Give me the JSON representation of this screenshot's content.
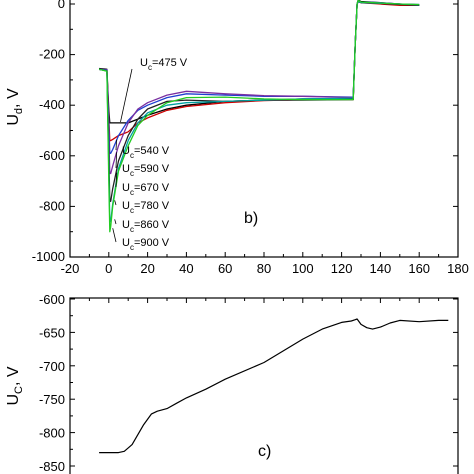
{
  "chart_data": [
    {
      "type": "line",
      "panel_label": "b)",
      "ylabel": "U",
      "ylabel_sub": "d",
      "ylabel_unit": ", V",
      "xlim": [
        -20,
        180
      ],
      "ylim": [
        -1000,
        0
      ],
      "xticks": [
        -20,
        0,
        20,
        40,
        60,
        80,
        100,
        120,
        140,
        160,
        180
      ],
      "yticks": [
        0,
        -200,
        -400,
        -600,
        -800,
        -1000
      ],
      "series": [
        {
          "name": "Uc=475 V",
          "color": "#000000",
          "min": -470,
          "x": [
            -5,
            -1,
            0,
            0.5,
            1,
            2,
            5,
            10,
            15,
            20,
            30,
            40,
            60,
            80,
            100,
            126,
            127,
            128,
            128.5,
            130,
            140,
            150,
            160
          ],
          "y": [
            -255,
            -258,
            -420,
            -470,
            -470,
            -470,
            -470,
            -470,
            -455,
            -440,
            -415,
            -400,
            -385,
            -380,
            -375,
            -375,
            -160,
            0,
            15,
            10,
            5,
            0,
            -5
          ]
        },
        {
          "name": "Uc=540 V",
          "color": "#cc0000",
          "min": -540,
          "x": [
            -5,
            -1,
            0,
            0.5,
            1,
            2,
            5,
            10,
            15,
            20,
            30,
            40,
            60,
            80,
            100,
            126,
            127,
            128,
            128.5,
            130,
            140,
            150,
            160
          ],
          "y": [
            -258,
            -260,
            -450,
            -540,
            -540,
            -535,
            -520,
            -505,
            -470,
            -450,
            -420,
            -405,
            -390,
            -382,
            -378,
            -378,
            -160,
            0,
            10,
            5,
            0,
            -5,
            -5
          ]
        },
        {
          "name": "Uc=590 V",
          "color": "#1f3fd0",
          "min": -590,
          "x": [
            -5,
            -1,
            0,
            0.5,
            1,
            2,
            5,
            10,
            15,
            20,
            30,
            40,
            60,
            80,
            100,
            126,
            127,
            128,
            128.5,
            130,
            140,
            150,
            160
          ],
          "y": [
            -258,
            -260,
            -470,
            -590,
            -590,
            -575,
            -520,
            -460,
            -420,
            -400,
            -370,
            -355,
            -360,
            -365,
            -365,
            -368,
            -160,
            0,
            12,
            8,
            5,
            0,
            -2
          ]
        },
        {
          "name": "Uc=670 V",
          "color": "#7a2fa0",
          "min": -670,
          "x": [
            -5,
            -1,
            0,
            0.5,
            1,
            2,
            5,
            10,
            15,
            20,
            30,
            40,
            60,
            80,
            100,
            126,
            127,
            128,
            128.5,
            130,
            140,
            150,
            160
          ],
          "y": [
            -258,
            -262,
            -520,
            -670,
            -670,
            -640,
            -560,
            -470,
            -415,
            -390,
            -360,
            -345,
            -355,
            -362,
            -365,
            -370,
            -160,
            0,
            8,
            6,
            3,
            0,
            -3
          ]
        },
        {
          "name": "Uc=780 V",
          "color": "#222222",
          "min": -780,
          "x": [
            -5,
            -1,
            0,
            0.5,
            1,
            2,
            5,
            10,
            15,
            20,
            30,
            40,
            60,
            80,
            100,
            126,
            127,
            128,
            128.5,
            130,
            140,
            150,
            160
          ],
          "y": [
            -258,
            -264,
            -600,
            -780,
            -780,
            -730,
            -620,
            -520,
            -455,
            -415,
            -385,
            -380,
            -385,
            -380,
            -380,
            -378,
            -160,
            0,
            10,
            5,
            2,
            -2,
            -5
          ]
        },
        {
          "name": "Uc=860 V",
          "color": "#00a0a0",
          "min": -860,
          "x": [
            -5,
            -1,
            0,
            0.5,
            1,
            2,
            5,
            10,
            15,
            20,
            30,
            40,
            60,
            80,
            100,
            126,
            127,
            128,
            128.5,
            130,
            140,
            150,
            160
          ],
          "y": [
            -258,
            -265,
            -650,
            -860,
            -860,
            -790,
            -650,
            -540,
            -470,
            -430,
            -400,
            -390,
            -385,
            -380,
            -375,
            -372,
            -160,
            0,
            10,
            6,
            3,
            0,
            -3
          ]
        },
        {
          "name": "Uc=900 V",
          "color": "#22cc22",
          "min": -900,
          "x": [
            -5,
            -1,
            0,
            0.5,
            1,
            2,
            5,
            10,
            15,
            20,
            30,
            40,
            60,
            80,
            100,
            126,
            127,
            128,
            128.5,
            130,
            140,
            150,
            160
          ],
          "y": [
            -258,
            -266,
            -700,
            -900,
            -880,
            -800,
            -660,
            -560,
            -480,
            -440,
            -390,
            -370,
            -368,
            -375,
            -378,
            -378,
            -160,
            0,
            14,
            8,
            4,
            0,
            -2
          ]
        }
      ],
      "annotations": [
        {
          "text_main": "U",
          "text_sub": "c",
          "text_rest": "=475 V",
          "anchor_x": 5,
          "anchor_y": -470
        },
        {
          "text_main": "U",
          "text_sub": "c",
          "text_rest": "=540 V",
          "anchor_x": 3,
          "anchor_y": -540
        },
        {
          "text_main": "U",
          "text_sub": "c",
          "text_rest": "=590 V",
          "anchor_x": 3,
          "anchor_y": -590
        },
        {
          "text_main": "U",
          "text_sub": "c",
          "text_rest": "=670 V",
          "anchor_x": 3,
          "anchor_y": -670
        },
        {
          "text_main": "U",
          "text_sub": "c",
          "text_rest": "=780 V",
          "anchor_x": 2,
          "anchor_y": -780
        },
        {
          "text_main": "U",
          "text_sub": "c",
          "text_rest": "=860 V",
          "anchor_x": 2,
          "anchor_y": -855
        },
        {
          "text_main": "U",
          "text_sub": "c",
          "text_rest": "=900 V",
          "anchor_x": 1,
          "anchor_y": -890
        }
      ]
    },
    {
      "type": "line",
      "panel_label": "c)",
      "ylabel": "U",
      "ylabel_sub": "C",
      "ylabel_unit": ", V",
      "xlim": [
        -20,
        180
      ],
      "ylim": [
        -850,
        -600
      ],
      "yticks": [
        -600,
        -650,
        -700,
        -750,
        -800,
        -850
      ],
      "series": [
        {
          "name": "",
          "color": "#000000",
          "x": [
            -5,
            0,
            5,
            8,
            12,
            15,
            18,
            22,
            25,
            30,
            35,
            40,
            50,
            60,
            80,
            100,
            110,
            120,
            125,
            127,
            128,
            130,
            133,
            136,
            140,
            145,
            150,
            160,
            170,
            175
          ],
          "y": [
            -830,
            -830,
            -830,
            -828,
            -818,
            -803,
            -788,
            -772,
            -768,
            -764,
            -756,
            -748,
            -735,
            -720,
            -695,
            -660,
            -645,
            -635,
            -633,
            -631,
            -630,
            -638,
            -643,
            -645,
            -642,
            -636,
            -632,
            -634,
            -632,
            -632
          ]
        }
      ]
    }
  ]
}
